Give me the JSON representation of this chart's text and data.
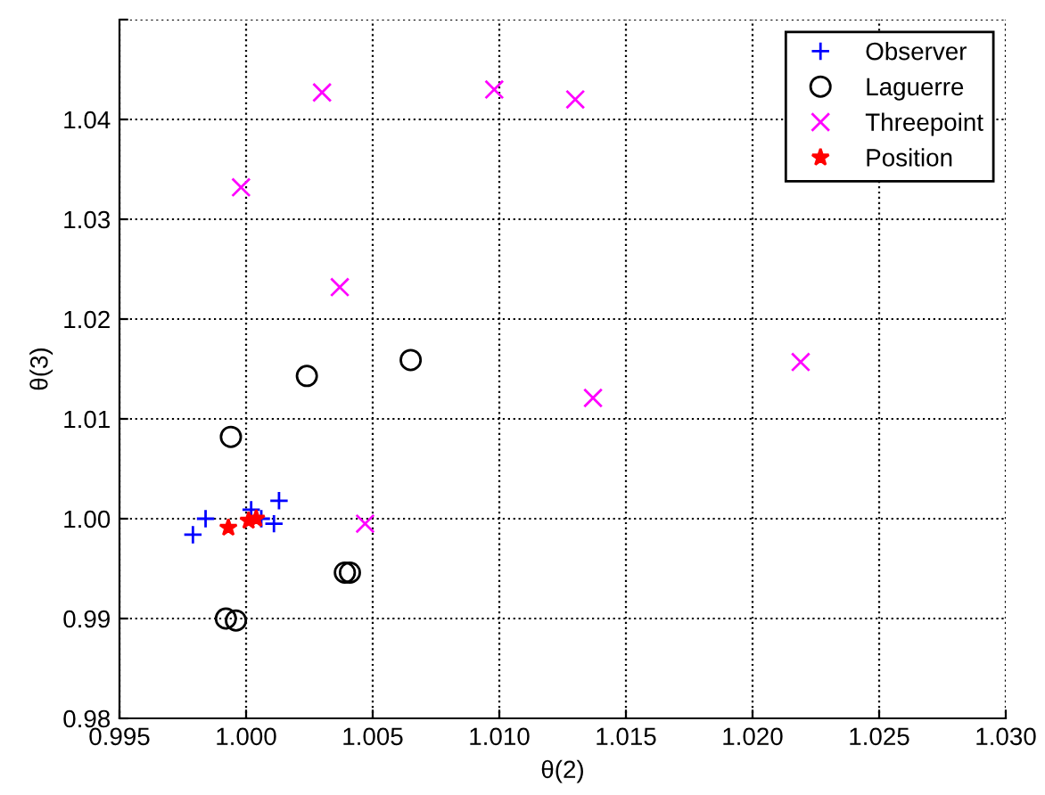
{
  "chart_data": {
    "type": "scatter",
    "xlabel": "θ(2)",
    "ylabel": "θ(3)",
    "xlim": [
      0.995,
      1.03
    ],
    "ylim": [
      0.98,
      1.05
    ],
    "xticks": [
      {
        "value": 0.995,
        "label": "0.995"
      },
      {
        "value": 1.0,
        "label": "1.000"
      },
      {
        "value": 1.005,
        "label": "1.005"
      },
      {
        "value": 1.01,
        "label": "1.010"
      },
      {
        "value": 1.015,
        "label": "1.015"
      },
      {
        "value": 1.02,
        "label": "1.020"
      },
      {
        "value": 1.025,
        "label": "1.025"
      },
      {
        "value": 1.03,
        "label": "1.030"
      }
    ],
    "yticks": [
      {
        "value": 0.98,
        "label": "0.98"
      },
      {
        "value": 0.99,
        "label": "0.99"
      },
      {
        "value": 1.0,
        "label": "1.00"
      },
      {
        "value": 1.01,
        "label": "1.01"
      },
      {
        "value": 1.02,
        "label": "1.02"
      },
      {
        "value": 1.03,
        "label": "1.03"
      },
      {
        "value": 1.04,
        "label": "1.04"
      },
      {
        "value": 1.05,
        "label": null
      }
    ],
    "grid": true,
    "legend": "top right",
    "series": [
      {
        "name": "Observer",
        "color": "#0000ff",
        "marker": "plus",
        "x": [
          0.9979,
          0.9984,
          1.0013,
          1.0011,
          1.0006,
          1.0002
        ],
        "values": [
          0.9984,
          1.0,
          1.0018,
          0.9995,
          1.0,
          1.0009
        ]
      },
      {
        "name": "Laguerre",
        "color": "#000000",
        "marker": "circle",
        "x": [
          1.0024,
          1.0065,
          0.9994,
          1.0039,
          1.0041,
          0.9992,
          0.9996
        ],
        "values": [
          1.0143,
          1.0159,
          1.0082,
          0.9946,
          0.9946,
          0.99,
          0.9898
        ]
      },
      {
        "name": "Threepoint",
        "color": "#ff00ff",
        "marker": "cross",
        "x": [
          1.003,
          1.0098,
          1.013,
          0.9998,
          1.0037,
          1.0219,
          1.0137,
          1.0047
        ],
        "values": [
          1.0427,
          1.043,
          1.042,
          1.0332,
          1.0232,
          1.0157,
          1.0121,
          0.9995
        ]
      },
      {
        "name": "Position",
        "color": "#ff0000",
        "marker": "star",
        "x": [
          0.9993,
          1.0004,
          1.0001
        ],
        "values": [
          0.9991,
          1.0,
          0.9998
        ]
      }
    ]
  }
}
